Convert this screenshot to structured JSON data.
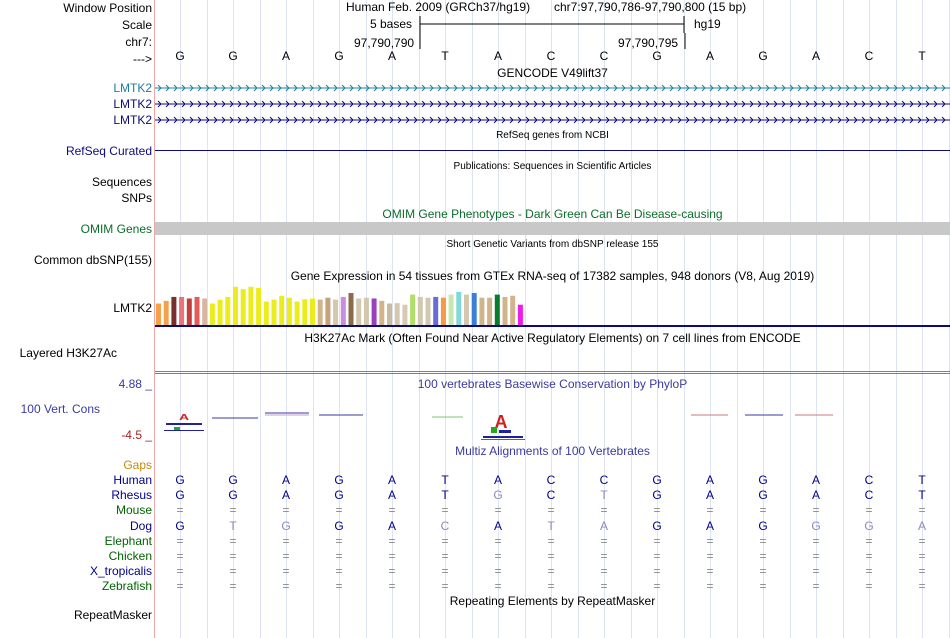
{
  "header": {
    "window_position_label": "Window Position",
    "scale_label": "Scale",
    "chr_label": "chr7:",
    "strand_label": "--->",
    "assembly_title": "Human Feb. 2009 (GRCh37/hg19)",
    "position": "chr7:97,790,786-97,790,800 (15 bp)",
    "scale_text": "5 bases",
    "assembly_short": "hg19",
    "coord_left": "97,790,790",
    "coord_right": "97,790,795"
  },
  "sequence": [
    "G",
    "G",
    "A",
    "G",
    "A",
    "T",
    "A",
    "C",
    "C",
    "G",
    "A",
    "G",
    "A",
    "C",
    "T"
  ],
  "tracks": {
    "gencode_title": "GENCODE V49lift37",
    "gencode_rows": [
      "LMTK2",
      "LMTK2",
      "LMTK2"
    ],
    "refseq_title": "RefSeq genes from NCBI",
    "refseq_label": "RefSeq Curated",
    "publications_title": "Publications: Sequences in Scientific Articles",
    "sequences_label": "Sequences",
    "snps_label": "SNPs",
    "omim_title": "OMIM Gene Phenotypes - Dark Green Can Be Disease-causing",
    "omim_label": "OMIM Genes",
    "dbsnp_title": "Short Genetic Variants from dbSNP release 155",
    "dbsnp_label": "Common dbSNP(155)",
    "gtex_title": "Gene Expression in 54 tissues from GTEx RNA-seq of 17382 samples, 948 donors (V8, Aug 2019)",
    "gtex_label": "LMTK2",
    "h3k27ac_title": "H3K27Ac Mark (Often Found Near Active Regulatory Elements) on 7 cell lines from ENCODE",
    "h3k27ac_label": "Layered H3K27Ac",
    "phylop_title": "100 vertebrates Basewise Conservation by PhyloP",
    "phylop_label": "100 Vert. Cons",
    "phylop_max": "4.88 _",
    "phylop_min": "-4.5 _",
    "multiz_title": "Multiz Alignments of 100 Vertebrates",
    "gaps_label": "Gaps",
    "repeat_title": "Repeating Elements by RepeatMasker",
    "repeat_label": "RepeatMasker"
  },
  "gtex_bars": [
    {
      "c": "#f5a14c",
      "v": 0.55
    },
    {
      "c": "#f5a14c",
      "v": 0.62
    },
    {
      "c": "#7a2e2e",
      "v": 0.72
    },
    {
      "c": "#e8737b",
      "v": 0.72
    },
    {
      "c": "#c43d3d",
      "v": 0.68
    },
    {
      "c": "#e65a5a",
      "v": 0.72
    },
    {
      "c": "#d8b6a0",
      "v": 0.68
    },
    {
      "c": "#ecec1c",
      "v": 0.55
    },
    {
      "c": "#ecec1c",
      "v": 0.65
    },
    {
      "c": "#ecec1c",
      "v": 0.72
    },
    {
      "c": "#ecec1c",
      "v": 0.98
    },
    {
      "c": "#ecec1c",
      "v": 0.92
    },
    {
      "c": "#ecec1c",
      "v": 0.98
    },
    {
      "c": "#ecec1c",
      "v": 0.95
    },
    {
      "c": "#ecec1c",
      "v": 0.6
    },
    {
      "c": "#ecec1c",
      "v": 0.65
    },
    {
      "c": "#ecec1c",
      "v": 0.75
    },
    {
      "c": "#ecec1c",
      "v": 0.7
    },
    {
      "c": "#ecec1c",
      "v": 0.6
    },
    {
      "c": "#ecec1c",
      "v": 0.66
    },
    {
      "c": "#ecec1c",
      "v": 0.68
    },
    {
      "c": "#d2b48c",
      "v": 0.65
    },
    {
      "c": "#c8a07a",
      "v": 0.7
    },
    {
      "c": "#d2c8b0",
      "v": 0.65
    },
    {
      "c": "#c88ce0",
      "v": 0.72
    },
    {
      "c": "#8b6b4a",
      "v": 0.82
    },
    {
      "c": "#d2c8b0",
      "v": 0.68
    },
    {
      "c": "#d2c8b0",
      "v": 0.7
    },
    {
      "c": "#9a3fbf",
      "v": 0.68
    },
    {
      "c": "#d2b48c",
      "v": 0.62
    },
    {
      "c": "#c8bca0",
      "v": 0.55
    },
    {
      "c": "#d2c8b0",
      "v": 0.56
    },
    {
      "c": "#d8c8b4",
      "v": 0.52
    },
    {
      "c": "#b0e06a",
      "v": 0.78
    },
    {
      "c": "#d2c8b0",
      "v": 0.72
    },
    {
      "c": "#d2c8b0",
      "v": 0.7
    },
    {
      "c": "#6b6bd6",
      "v": 0.72
    },
    {
      "c": "#f59a45",
      "v": 0.7
    },
    {
      "c": "#c8e6b0",
      "v": 0.78
    },
    {
      "c": "#80d8d8",
      "v": 0.85
    },
    {
      "c": "#d2c8b0",
      "v": 0.78
    },
    {
      "c": "#3a7fd6",
      "v": 0.82
    },
    {
      "c": "#d2b48c",
      "v": 0.7
    },
    {
      "c": "#d2b48c",
      "v": 0.7
    },
    {
      "c": "#0a7a2e",
      "v": 0.78
    },
    {
      "c": "#d2b48c",
      "v": 0.72
    },
    {
      "c": "#d2b48c",
      "v": 0.75
    },
    {
      "c": "#ee1ce6",
      "v": 0.52
    }
  ],
  "species": [
    {
      "name": "Human",
      "color": "#00008b",
      "seq": [
        "G",
        "G",
        "A",
        "G",
        "A",
        "T",
        "A",
        "C",
        "C",
        "G",
        "A",
        "G",
        "A",
        "C",
        "T"
      ]
    },
    {
      "name": "Rhesus",
      "color": "#00008b",
      "seq": [
        "G",
        "G",
        "A",
        "G",
        "A",
        "T",
        "G",
        "C",
        "T",
        "G",
        "A",
        "G",
        "A",
        "C",
        "T"
      ]
    },
    {
      "name": "Mouse",
      "color": "#006400",
      "seq": [
        "=",
        "=",
        "=",
        "=",
        "=",
        "=",
        "=",
        "=",
        "=",
        "=",
        "=",
        "=",
        "=",
        "=",
        "="
      ]
    },
    {
      "name": "Dog",
      "color": "#00008b",
      "seq": [
        "G",
        "T",
        "G",
        "G",
        "A",
        "C",
        "A",
        "T",
        "A",
        "G",
        "A",
        "G",
        "G",
        "G",
        "A"
      ]
    },
    {
      "name": "Elephant",
      "color": "#006400",
      "seq": [
        "=",
        "=",
        "=",
        "=",
        "=",
        "=",
        "=",
        "=",
        "=",
        "=",
        "=",
        "=",
        "=",
        "=",
        "="
      ]
    },
    {
      "name": "Chicken",
      "color": "#006400",
      "seq": [
        "=",
        "=",
        "=",
        "=",
        "=",
        "=",
        "=",
        "=",
        "=",
        "=",
        "=",
        "=",
        "=",
        "=",
        "="
      ]
    },
    {
      "name": "X_tropicalis",
      "color": "#00008b",
      "seq": [
        "=",
        "=",
        "=",
        "=",
        "=",
        "=",
        "=",
        "=",
        "=",
        "=",
        "=",
        "=",
        "=",
        "=",
        "="
      ]
    },
    {
      "name": "Zebrafish",
      "color": "#006400",
      "seq": [
        "=",
        "=",
        "=",
        "=",
        "=",
        "=",
        "=",
        "=",
        "=",
        "=",
        "=",
        "=",
        "=",
        "=",
        "="
      ]
    }
  ],
  "colors": {
    "gencode": "#1d7ca8",
    "refseq": "#0c0c78",
    "omim_title": "#0a6e2a",
    "phylop": "#3a3aa0",
    "phylop_min": "#a02020",
    "gaps": "#c8880a",
    "mismatch": "#8a8ac0",
    "h3k27ac": "#c85a82"
  }
}
